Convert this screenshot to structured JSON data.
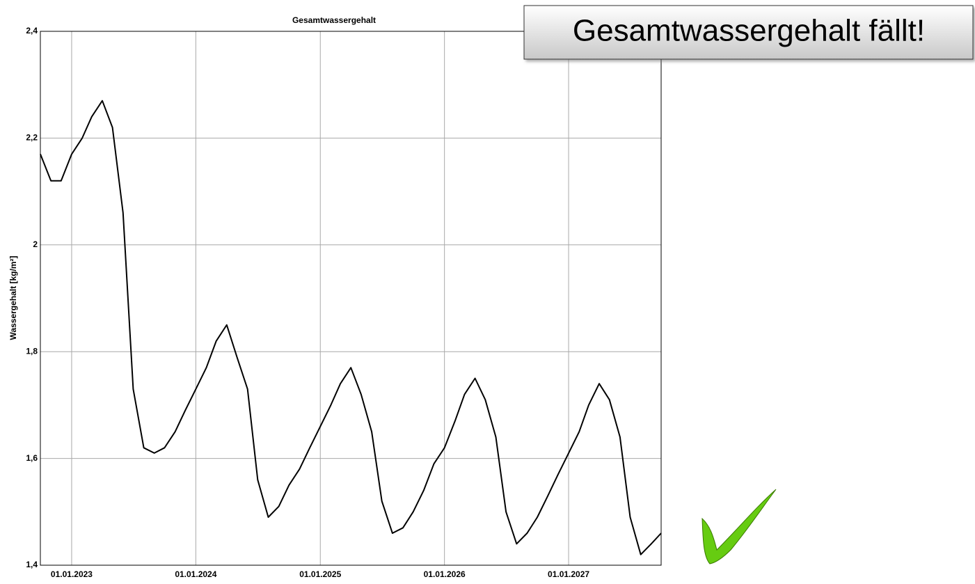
{
  "chart_data": {
    "type": "line",
    "title": "Gesamtwassergehalt",
    "ylabel": "Wassergehalt [kg/m²]",
    "annotation": "Gesamtwassergehalt fällt!",
    "x": [
      "01.10.2022",
      "01.11.2022",
      "01.12.2022",
      "01.01.2023",
      "01.02.2023",
      "01.03.2023",
      "01.04.2023",
      "01.05.2023",
      "01.06.2023",
      "01.07.2023",
      "01.08.2023",
      "01.09.2023",
      "01.10.2023",
      "01.11.2023",
      "01.12.2023",
      "01.01.2024",
      "01.02.2024",
      "01.03.2024",
      "01.04.2024",
      "01.05.2024",
      "01.06.2024",
      "01.07.2024",
      "01.08.2024",
      "01.09.2024",
      "01.10.2024",
      "01.11.2024",
      "01.12.2024",
      "01.01.2025",
      "01.02.2025",
      "01.03.2025",
      "01.04.2025",
      "01.05.2025",
      "01.06.2025",
      "01.07.2025",
      "01.08.2025",
      "01.09.2025",
      "01.10.2025",
      "01.11.2025",
      "01.12.2025",
      "01.01.2026",
      "01.02.2026",
      "01.03.2026",
      "01.04.2026",
      "01.05.2026",
      "01.06.2026",
      "01.07.2026",
      "01.08.2026",
      "01.09.2026",
      "01.10.2026",
      "01.11.2026",
      "01.12.2026",
      "01.01.2027",
      "01.02.2027",
      "01.03.2027",
      "01.04.2027",
      "01.05.2027",
      "01.06.2027",
      "01.07.2027",
      "01.08.2027",
      "01.09.2027",
      "30.09.2027"
    ],
    "series": [
      {
        "name": "Gesamtwassergehalt",
        "color": "#000000",
        "values": [
          2.17,
          2.12,
          2.12,
          2.17,
          2.2,
          2.24,
          2.27,
          2.22,
          2.06,
          1.73,
          1.62,
          1.61,
          1.62,
          1.65,
          1.69,
          1.73,
          1.77,
          1.82,
          1.85,
          1.79,
          1.73,
          1.56,
          1.49,
          1.51,
          1.55,
          1.58,
          1.62,
          1.66,
          1.7,
          1.74,
          1.77,
          1.72,
          1.65,
          1.52,
          1.46,
          1.47,
          1.5,
          1.54,
          1.59,
          1.62,
          1.67,
          1.72,
          1.75,
          1.71,
          1.64,
          1.5,
          1.44,
          1.46,
          1.49,
          1.53,
          1.57,
          1.61,
          1.65,
          1.7,
          1.74,
          1.71,
          1.64,
          1.49,
          1.42,
          1.44,
          1.46
        ]
      }
    ],
    "xlim": [
      "01.10.2022",
      "30.09.2027"
    ],
    "xticks": [
      "01.01.2023",
      "01.01.2024",
      "01.01.2025",
      "01.01.2026",
      "01.01.2027"
    ],
    "ylim": [
      1.4,
      2.4
    ],
    "yticks": [
      {
        "value": 1.4,
        "label": "1,4"
      },
      {
        "value": 1.6,
        "label": "1,6"
      },
      {
        "value": 1.8,
        "label": "1,8"
      },
      2,
      {
        "value": 2.2,
        "label": "2,2"
      },
      {
        "value": 2.4,
        "label": "2,4"
      }
    ],
    "grid": true
  }
}
